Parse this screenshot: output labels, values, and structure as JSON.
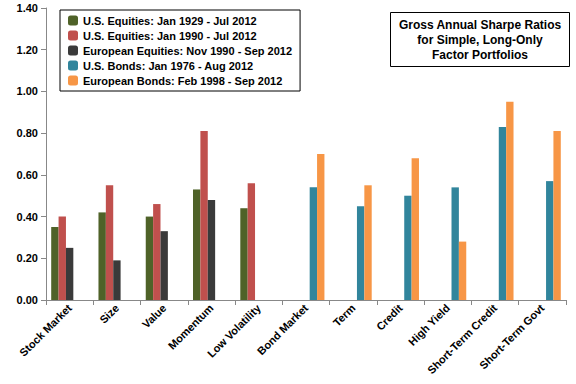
{
  "chart_data": {
    "type": "bar",
    "title": "Gross Annual Sharpe Ratios\nfor Simple, Long-Only\nFactor Portfolios",
    "categories": [
      "Stock Market",
      "Size",
      "Value",
      "Momentum",
      "Low Volatility",
      "Bond Market",
      "Term",
      "Credit",
      "High Yield",
      "Short-Term Credit",
      "Short-Term Govt"
    ],
    "series": [
      {
        "name": "U.S. Equities: Jan 1929 - Jul 2012",
        "color": "#4f6228",
        "values": [
          0.35,
          0.42,
          0.4,
          0.53,
          0.44,
          null,
          null,
          null,
          null,
          null,
          null
        ]
      },
      {
        "name": "U.S. Equities: Jan 1990 - Jul 2012",
        "color": "#c0504d",
        "values": [
          0.4,
          0.55,
          0.46,
          0.81,
          0.56,
          null,
          null,
          null,
          null,
          null,
          null
        ]
      },
      {
        "name": "European Equities: Nov 1990 - Sep 2012",
        "color": "#3a3a3a",
        "values": [
          0.25,
          0.19,
          0.33,
          0.48,
          null,
          null,
          null,
          null,
          null,
          null,
          null
        ]
      },
      {
        "name": "U.S. Bonds: Jan 1976 - Aug 2012",
        "color": "#31859c",
        "values": [
          null,
          null,
          null,
          null,
          null,
          0.54,
          0.45,
          0.5,
          0.54,
          0.83,
          0.57
        ]
      },
      {
        "name": "European Bonds: Feb 1998 - Sep 2012",
        "color": "#f79646",
        "values": [
          null,
          null,
          null,
          null,
          null,
          0.7,
          0.55,
          0.68,
          0.28,
          0.95,
          0.81
        ]
      }
    ],
    "ylim": [
      0,
      1.4
    ],
    "yticks": [
      {
        "value": 0,
        "label": "0.00"
      },
      {
        "value": 0.2,
        "label": "0.20"
      },
      {
        "value": 0.4,
        "label": "0.40"
      },
      {
        "value": 0.6,
        "label": "0.60"
      },
      {
        "value": 0.8,
        "label": "0.80"
      },
      {
        "value": 1.0,
        "label": "1.00"
      },
      {
        "value": 1.2,
        "label": "1.20"
      },
      {
        "value": 1.4,
        "label": "1.40"
      }
    ],
    "grid": false,
    "legend": "upper left"
  }
}
